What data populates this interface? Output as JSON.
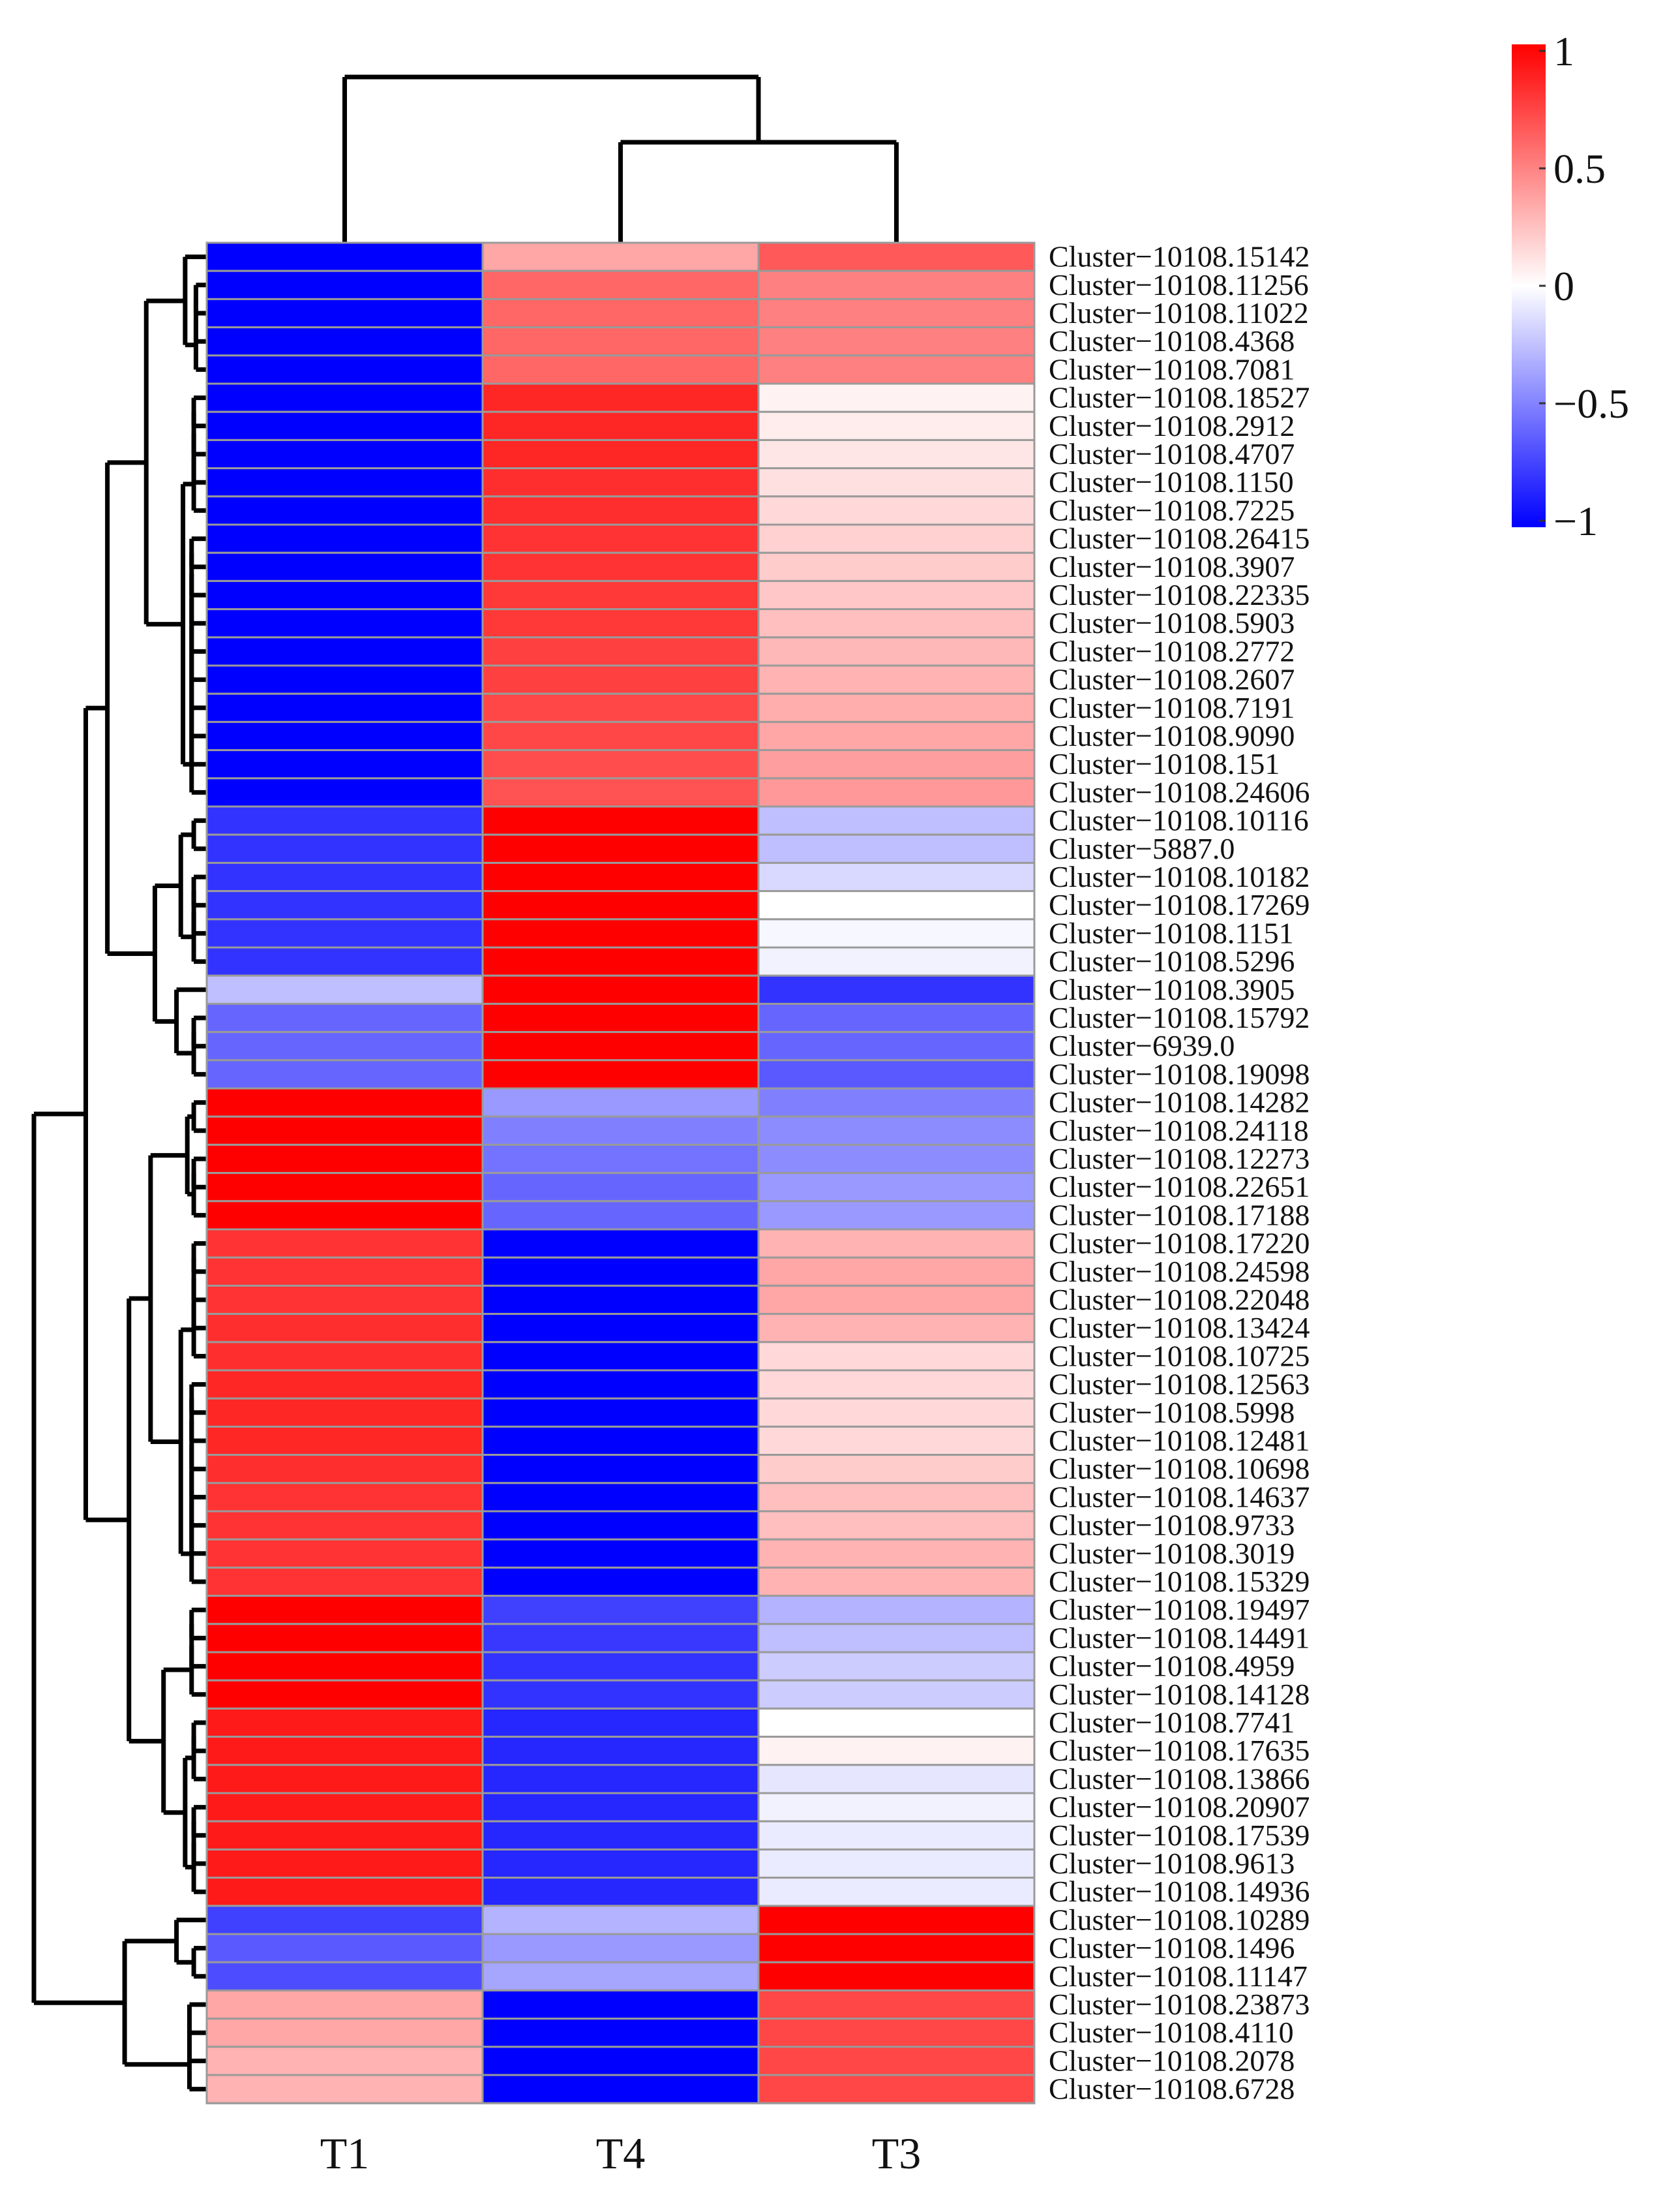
{
  "chart_data": {
    "type": "heatmap",
    "title": "",
    "columns": [
      "T1",
      "T4",
      "T3"
    ],
    "rows": [
      "Cluster−10108.15142",
      "Cluster−10108.11256",
      "Cluster−10108.11022",
      "Cluster−10108.4368",
      "Cluster−10108.7081",
      "Cluster−10108.18527",
      "Cluster−10108.2912",
      "Cluster−10108.4707",
      "Cluster−10108.1150",
      "Cluster−10108.7225",
      "Cluster−10108.26415",
      "Cluster−10108.3907",
      "Cluster−10108.22335",
      "Cluster−10108.5903",
      "Cluster−10108.2772",
      "Cluster−10108.2607",
      "Cluster−10108.7191",
      "Cluster−10108.9090",
      "Cluster−10108.151",
      "Cluster−10108.24606",
      "Cluster−10108.10116",
      "Cluster−5887.0",
      "Cluster−10108.10182",
      "Cluster−10108.17269",
      "Cluster−10108.1151",
      "Cluster−10108.5296",
      "Cluster−10108.3905",
      "Cluster−10108.15792",
      "Cluster−6939.0",
      "Cluster−10108.19098",
      "Cluster−10108.14282",
      "Cluster−10108.24118",
      "Cluster−10108.12273",
      "Cluster−10108.22651",
      "Cluster−10108.17188",
      "Cluster−10108.17220",
      "Cluster−10108.24598",
      "Cluster−10108.22048",
      "Cluster−10108.13424",
      "Cluster−10108.10725",
      "Cluster−10108.12563",
      "Cluster−10108.5998",
      "Cluster−10108.12481",
      "Cluster−10108.10698",
      "Cluster−10108.14637",
      "Cluster−10108.9733",
      "Cluster−10108.3019",
      "Cluster−10108.15329",
      "Cluster−10108.19497",
      "Cluster−10108.14491",
      "Cluster−10108.4959",
      "Cluster−10108.14128",
      "Cluster−10108.7741",
      "Cluster−10108.17635",
      "Cluster−10108.13866",
      "Cluster−10108.20907",
      "Cluster−10108.17539",
      "Cluster−10108.9613",
      "Cluster−10108.14936",
      "Cluster−10108.10289",
      "Cluster−10108.1496",
      "Cluster−10108.11147",
      "Cluster−10108.23873",
      "Cluster−10108.4110",
      "Cluster−10108.2078",
      "Cluster−10108.6728"
    ],
    "values": [
      [
        -1.0,
        0.35,
        0.65
      ],
      [
        -1.0,
        0.6,
        0.5
      ],
      [
        -1.0,
        0.6,
        0.5
      ],
      [
        -1.0,
        0.6,
        0.5
      ],
      [
        -1.0,
        0.6,
        0.5
      ],
      [
        -1.0,
        0.85,
        0.05
      ],
      [
        -1.0,
        0.85,
        0.07
      ],
      [
        -1.0,
        0.85,
        0.1
      ],
      [
        -1.0,
        0.82,
        0.12
      ],
      [
        -1.0,
        0.82,
        0.15
      ],
      [
        -1.0,
        0.8,
        0.18
      ],
      [
        -1.0,
        0.8,
        0.2
      ],
      [
        -1.0,
        0.78,
        0.22
      ],
      [
        -1.0,
        0.78,
        0.25
      ],
      [
        -1.0,
        0.75,
        0.28
      ],
      [
        -1.0,
        0.75,
        0.3
      ],
      [
        -1.0,
        0.72,
        0.32
      ],
      [
        -1.0,
        0.72,
        0.35
      ],
      [
        -1.0,
        0.7,
        0.38
      ],
      [
        -1.0,
        0.68,
        0.4
      ],
      [
        -0.8,
        1.0,
        -0.25
      ],
      [
        -0.8,
        1.0,
        -0.25
      ],
      [
        -0.8,
        1.0,
        -0.15
      ],
      [
        -0.8,
        1.0,
        0.0
      ],
      [
        -0.8,
        1.0,
        -0.03
      ],
      [
        -0.8,
        1.0,
        -0.05
      ],
      [
        -0.25,
        1.0,
        -0.8
      ],
      [
        -0.6,
        1.0,
        -0.6
      ],
      [
        -0.6,
        1.0,
        -0.6
      ],
      [
        -0.6,
        1.0,
        -0.65
      ],
      [
        1.0,
        -0.4,
        -0.5
      ],
      [
        1.0,
        -0.5,
        -0.45
      ],
      [
        1.0,
        -0.55,
        -0.45
      ],
      [
        1.0,
        -0.6,
        -0.4
      ],
      [
        1.0,
        -0.6,
        -0.4
      ],
      [
        0.8,
        -1.0,
        0.3
      ],
      [
        0.8,
        -1.0,
        0.35
      ],
      [
        0.8,
        -1.0,
        0.35
      ],
      [
        0.82,
        -1.0,
        0.3
      ],
      [
        0.82,
        -1.0,
        0.15
      ],
      [
        0.85,
        -1.0,
        0.15
      ],
      [
        0.85,
        -1.0,
        0.15
      ],
      [
        0.85,
        -1.0,
        0.15
      ],
      [
        0.82,
        -1.0,
        0.2
      ],
      [
        0.8,
        -1.0,
        0.25
      ],
      [
        0.8,
        -1.0,
        0.25
      ],
      [
        0.8,
        -1.0,
        0.3
      ],
      [
        0.8,
        -1.0,
        0.3
      ],
      [
        1.0,
        -0.75,
        -0.3
      ],
      [
        1.0,
        -0.78,
        -0.25
      ],
      [
        1.0,
        -0.8,
        -0.2
      ],
      [
        1.0,
        -0.8,
        -0.2
      ],
      [
        0.9,
        -0.85,
        0.0
      ],
      [
        0.9,
        -0.85,
        0.05
      ],
      [
        0.9,
        -0.85,
        -0.1
      ],
      [
        0.9,
        -0.85,
        -0.05
      ],
      [
        0.9,
        -0.85,
        -0.08
      ],
      [
        0.9,
        -0.85,
        -0.08
      ],
      [
        0.9,
        -0.85,
        -0.08
      ],
      [
        -0.75,
        -0.3,
        1.0
      ],
      [
        -0.65,
        -0.4,
        1.0
      ],
      [
        -0.7,
        -0.35,
        1.0
      ],
      [
        0.35,
        -1.0,
        0.72
      ],
      [
        0.35,
        -1.0,
        0.72
      ],
      [
        0.3,
        -1.0,
        0.72
      ],
      [
        0.3,
        -1.0,
        0.72
      ]
    ],
    "colorbar": {
      "min": -1,
      "max": 1,
      "colors": [
        "#0000ff",
        "#ffffff",
        "#ff0000"
      ],
      "ticks": [
        {
          "value": 1,
          "label": "1"
        },
        {
          "value": 0.5,
          "label": "0.5"
        },
        {
          "value": 0,
          "label": "0"
        },
        {
          "value": -0.5,
          "label": "−0.5"
        },
        {
          "value": -1,
          "label": "−1"
        }
      ]
    },
    "column_clustering": "T1 | (T4, T3)",
    "row_clustering": "hierarchical"
  }
}
